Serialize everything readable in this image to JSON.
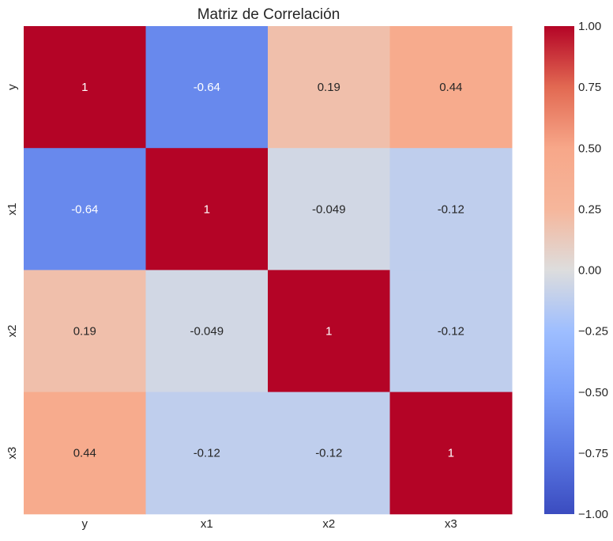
{
  "chart_data": {
    "type": "heatmap",
    "title": "Matriz de Correlación",
    "xlabel": "",
    "ylabel": "",
    "rows": [
      "y",
      "x1",
      "x2",
      "x3"
    ],
    "columns": [
      "y",
      "x1",
      "x2",
      "x3"
    ],
    "values": [
      [
        1,
        -0.64,
        0.19,
        0.44
      ],
      [
        -0.64,
        1,
        -0.049,
        -0.12
      ],
      [
        0.19,
        -0.049,
        1,
        -0.12
      ],
      [
        0.44,
        -0.12,
        -0.12,
        1
      ]
    ],
    "annotations": [
      [
        "1",
        "-0.64",
        "0.19",
        "0.44"
      ],
      [
        "-0.64",
        "1",
        "-0.049",
        "-0.12"
      ],
      [
        "0.19",
        "-0.049",
        "1",
        "-0.12"
      ],
      [
        "0.44",
        "-0.12",
        "-0.12",
        "1"
      ]
    ],
    "colormap": "coolwarm",
    "vmin": -1.0,
    "vmax": 1.0,
    "colorbar": {
      "ticks": [
        1.0,
        0.75,
        0.5,
        0.25,
        0.0,
        -0.25,
        -0.5,
        -0.75,
        -1.0
      ],
      "tick_labels": [
        "1.00",
        "0.75",
        "0.50",
        "0.25",
        "0.00",
        "−0.25",
        "−0.50",
        "−0.75",
        "−1.00"
      ]
    },
    "grid": false
  }
}
